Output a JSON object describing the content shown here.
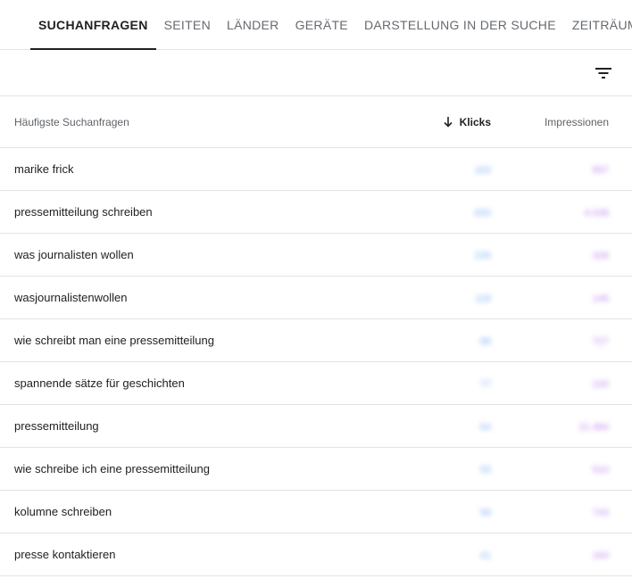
{
  "tabs": [
    {
      "label": "SUCHANFRAGEN",
      "active": true
    },
    {
      "label": "SEITEN",
      "active": false
    },
    {
      "label": "LÄNDER",
      "active": false
    },
    {
      "label": "GERÄTE",
      "active": false
    },
    {
      "label": "DARSTELLUNG IN DER SUCHE",
      "active": false
    },
    {
      "label": "ZEITRÄUME",
      "active": false
    }
  ],
  "toolbar": {
    "filter_icon": "filter-list-icon"
  },
  "table": {
    "headers": {
      "query": "Häufigste Suchanfragen",
      "clicks": "Klicks",
      "impressions": "Impressionen",
      "sort_icon": "arrow-down-icon"
    },
    "rows": [
      {
        "query": "marike frick",
        "clicks": "163",
        "impressions": "897"
      },
      {
        "query": "pressemitteilung schreiben",
        "clicks": "650",
        "impressions": "4.038"
      },
      {
        "query": "was journalisten wollen",
        "clicks": "235",
        "impressions": "328"
      },
      {
        "query": "wasjournalistenwollen",
        "clicks": "118",
        "impressions": "146"
      },
      {
        "query": "wie schreibt man eine pressemitteilung",
        "clicks": "88",
        "impressions": "727"
      },
      {
        "query": "spannende sätze für geschichten",
        "clicks": "77",
        "impressions": "220"
      },
      {
        "query": "pressemitteilung",
        "clicks": "64",
        "impressions": "21.484"
      },
      {
        "query": "wie schreibe ich eine pressemitteilung",
        "clicks": "55",
        "impressions": "510"
      },
      {
        "query": "kolumne schreiben",
        "clicks": "58",
        "impressions": "743"
      },
      {
        "query": "presse kontaktieren",
        "clicks": "41",
        "impressions": "164"
      }
    ]
  },
  "colors": {
    "clicks": "#4285f4",
    "impressions": "#9334e6"
  }
}
